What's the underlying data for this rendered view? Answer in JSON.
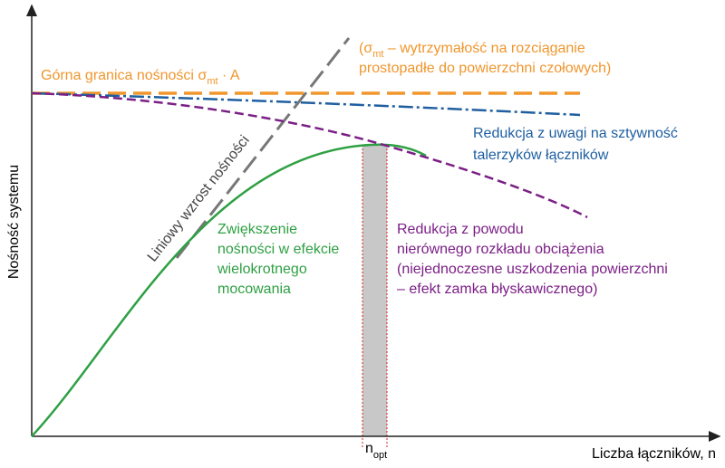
{
  "axes": {
    "y_label": "Nośność systemu",
    "x_label": "Liczba łączników, n",
    "x_marker": {
      "base": "n",
      "sub": "opt"
    }
  },
  "upper_limit": {
    "text": "Górna granica nośności σ",
    "sub": "mt",
    "tail": " · A"
  },
  "sigma_note": {
    "line1": {
      "prefix": "(σ",
      "sub": "mt",
      "rest": " – wytrzymałość na rozciąganie"
    },
    "line2": "prostopadłe do powierzchni czołowych)"
  },
  "stiffness_reduction": [
    "Redukcja z uwagi na sztywność",
    "talerzyków łączników"
  ],
  "linear_growth": "Liniowy wzrost nośności",
  "increase": [
    "Zwiększenie",
    "nośności w efekcie",
    "wielokrotnego",
    "mocowania"
  ],
  "uneven_reduction": [
    "Redukcja z powodu",
    "nierównego rozkładu obciążenia",
    "(niejednoczesne uszkodzenia powierzchni",
    "– efekt zamka błyskawicznego)"
  ]
}
